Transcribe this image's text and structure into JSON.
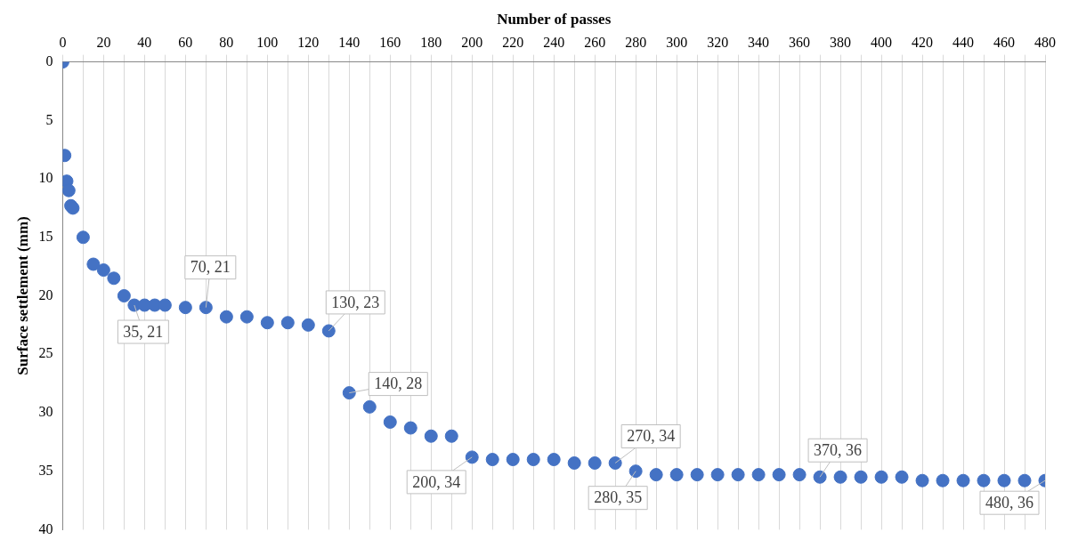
{
  "chart_data": {
    "type": "scatter",
    "xlabel": "Number of passes",
    "ylabel": "Surface settlement (mm)",
    "x": [
      0,
      1,
      2,
      3,
      4,
      5,
      10,
      15,
      20,
      25,
      30,
      35,
      40,
      45,
      50,
      60,
      70,
      80,
      90,
      100,
      110,
      120,
      130,
      140,
      150,
      160,
      170,
      180,
      190,
      200,
      210,
      220,
      230,
      240,
      250,
      260,
      270,
      280,
      290,
      300,
      310,
      320,
      330,
      340,
      350,
      360,
      370,
      380,
      390,
      400,
      410,
      420,
      430,
      440,
      450,
      460,
      470,
      480
    ],
    "series": [
      {
        "color": "#4472c4",
        "values": [
          0,
          8,
          10.2,
          11,
          12.3,
          12.5,
          15,
          17.3,
          17.8,
          18.5,
          20,
          20.8,
          20.8,
          20.8,
          20.8,
          21,
          21,
          21.8,
          21.8,
          22.3,
          22.3,
          22.5,
          23,
          28.3,
          29.5,
          30.8,
          31.3,
          32,
          32,
          33.8,
          34,
          34,
          34,
          34,
          34.3,
          34.3,
          34.3,
          35,
          35.3,
          35.3,
          35.3,
          35.3,
          35.3,
          35.3,
          35.3,
          35.3,
          35.5,
          35.5,
          35.5,
          35.5,
          35.5,
          35.8,
          35.8,
          35.8,
          35.8,
          35.8,
          35.8,
          35.8
        ]
      }
    ],
    "xlim": [
      0,
      480
    ],
    "xticks": [
      0,
      {
        "value": 10,
        "label": null
      },
      20,
      {
        "value": 30,
        "label": null
      },
      40,
      {
        "value": 50,
        "label": null
      },
      60,
      {
        "value": 70,
        "label": null
      },
      80,
      {
        "value": 90,
        "label": null
      },
      100,
      {
        "value": 110,
        "label": null
      },
      120,
      {
        "value": 130,
        "label": null
      },
      140,
      {
        "value": 150,
        "label": null
      },
      160,
      {
        "value": 170,
        "label": null
      },
      180,
      {
        "value": 190,
        "label": null
      },
      200,
      {
        "value": 210,
        "label": null
      },
      220,
      {
        "value": 230,
        "label": null
      },
      240,
      {
        "value": 250,
        "label": null
      },
      260,
      {
        "value": 270,
        "label": null
      },
      280,
      {
        "value": 290,
        "label": null
      },
      300,
      {
        "value": 310,
        "label": null
      },
      320,
      {
        "value": 330,
        "label": null
      },
      340,
      {
        "value": 350,
        "label": null
      },
      360,
      {
        "value": 370,
        "label": null
      },
      380,
      {
        "value": 390,
        "label": null
      },
      400,
      {
        "value": 410,
        "label": null
      },
      420,
      {
        "value": 430,
        "label": null
      },
      440,
      {
        "value": 450,
        "label": null
      },
      460,
      {
        "value": 470,
        "label": null
      },
      480
    ],
    "ylim": [
      40,
      0
    ],
    "yticks": [
      0,
      5,
      10,
      15,
      20,
      25,
      30,
      35,
      40
    ],
    "grid": "x",
    "marker": "circle",
    "legend": false,
    "annotations": [
      {
        "text": "35, 21",
        "x": 35,
        "y": 20.8
      },
      {
        "text": "70, 21",
        "x": 70,
        "y": 21
      },
      {
        "text": "130, 23",
        "x": 130,
        "y": 23
      },
      {
        "text": "140, 28",
        "x": 140,
        "y": 28.3
      },
      {
        "text": "200, 34",
        "x": 200,
        "y": 33.8
      },
      {
        "text": "270, 34",
        "x": 270,
        "y": 34.3
      },
      {
        "text": "280, 35",
        "x": 280,
        "y": 35
      },
      {
        "text": "370, 36",
        "x": 370,
        "y": 35.5
      },
      {
        "text": "480, 36",
        "x": 480,
        "y": 35.8
      }
    ]
  }
}
